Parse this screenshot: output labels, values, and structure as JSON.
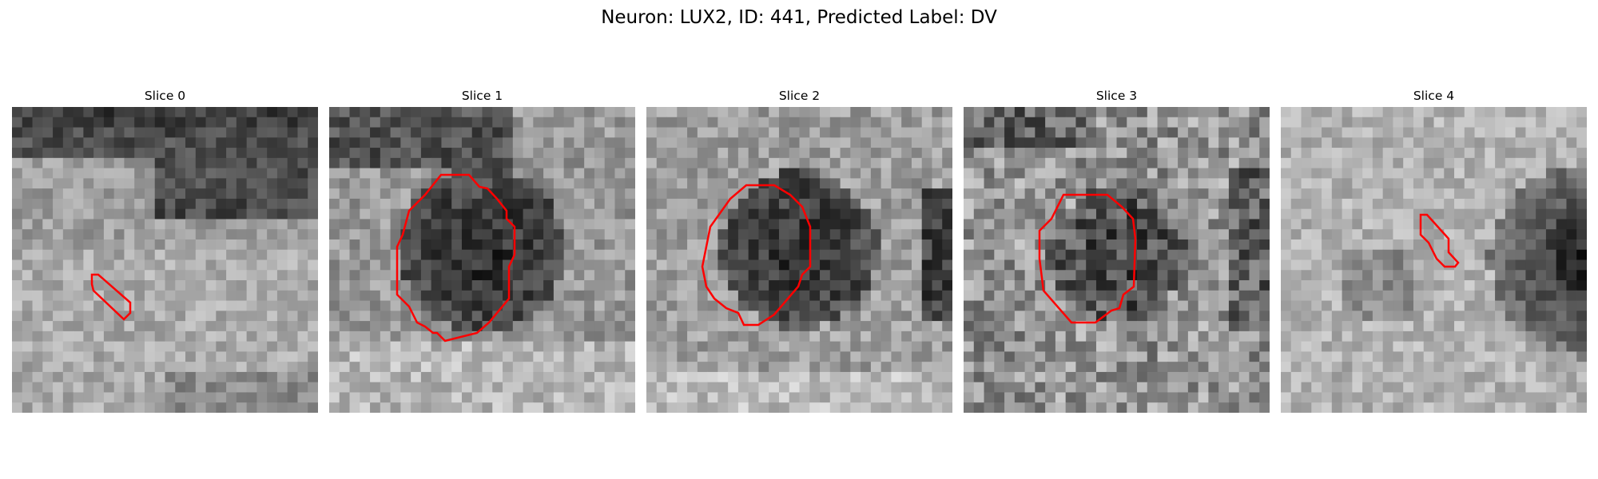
{
  "figure": {
    "title": "Neuron: LUX2, ID: 441, Predicted Label: DV"
  },
  "panels": [
    {
      "title": "Slice 0",
      "image_icon": "grayscale-microscopy-tile",
      "contour_color": "#ff0000"
    },
    {
      "title": "Slice 1",
      "image_icon": "grayscale-microscopy-tile",
      "contour_color": "#ff0000"
    },
    {
      "title": "Slice 2",
      "image_icon": "grayscale-microscopy-tile",
      "contour_color": "#ff0000"
    },
    {
      "title": "Slice 3",
      "image_icon": "grayscale-microscopy-tile",
      "contour_color": "#ff0000"
    },
    {
      "title": "Slice 4",
      "image_icon": "grayscale-microscopy-tile",
      "contour_color": "#ff0000"
    }
  ]
}
